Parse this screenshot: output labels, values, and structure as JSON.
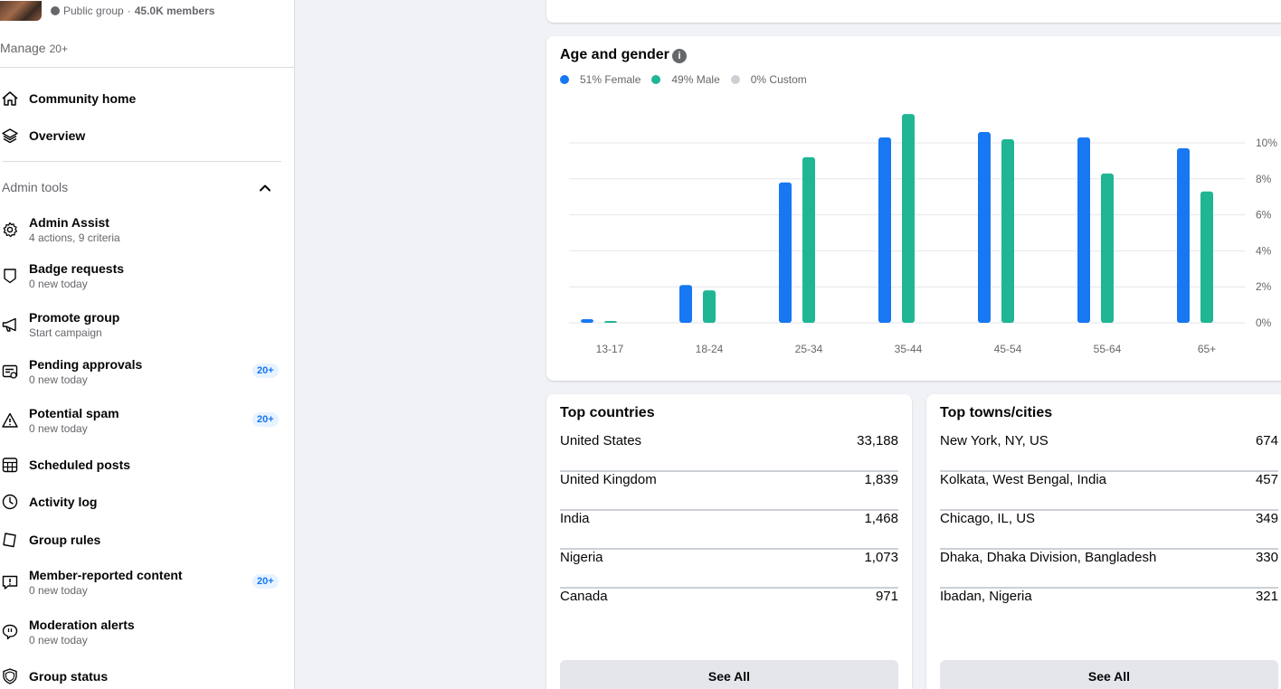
{
  "group": {
    "privacy": "Public group",
    "members": "45.0K members"
  },
  "manage": {
    "label": "Manage",
    "count": "20+"
  },
  "nav_top": [
    {
      "label": "Community home",
      "icon": "home-icon"
    },
    {
      "label": "Overview",
      "icon": "layers-icon"
    }
  ],
  "admin_tools": {
    "title": "Admin tools",
    "items": [
      {
        "label": "Admin Assist",
        "sub": "4 actions, 9 criteria",
        "icon": "gear-icon"
      },
      {
        "label": "Badge requests",
        "sub": "0 new today",
        "icon": "badge-icon"
      },
      {
        "label": "Promote group",
        "sub": "Start campaign",
        "icon": "megaphone-icon"
      },
      {
        "label": "Pending approvals",
        "sub": "0 new today",
        "icon": "approvals-icon",
        "badge": "20+"
      },
      {
        "label": "Potential spam",
        "sub": "0 new today",
        "icon": "warning-icon",
        "badge": "20+"
      },
      {
        "label": "Scheduled posts",
        "icon": "calendar-icon"
      },
      {
        "label": "Activity log",
        "icon": "clock-icon"
      },
      {
        "label": "Group rules",
        "icon": "rules-icon"
      },
      {
        "label": "Member-reported content",
        "sub": "0 new today",
        "icon": "report-icon",
        "badge": "20+"
      },
      {
        "label": "Moderation alerts",
        "sub": "0 new today",
        "icon": "alert-bubble-icon"
      },
      {
        "label": "Group status",
        "icon": "shield-icon"
      }
    ]
  },
  "age_gender": {
    "title": "Age and gender",
    "legend": [
      {
        "label": "51% Female",
        "color": "#1877f2"
      },
      {
        "label": "49% Male",
        "color": "#20b693"
      },
      {
        "label": "0% Custom",
        "color": "#ccd0d5"
      }
    ]
  },
  "chart_data": {
    "type": "bar",
    "categories": [
      "13-17",
      "18-24",
      "25-34",
      "35-44",
      "45-54",
      "55-64",
      "65+"
    ],
    "series": [
      {
        "name": "Female",
        "color": "#1877f2",
        "values": [
          0.2,
          2.1,
          7.8,
          10.3,
          10.6,
          10.3,
          9.7
        ]
      },
      {
        "name": "Male",
        "color": "#20b693",
        "values": [
          0.1,
          1.8,
          9.2,
          11.6,
          10.2,
          8.3,
          7.3
        ]
      }
    ],
    "yticks": [
      "0%",
      "2%",
      "4%",
      "6%",
      "8%",
      "10%"
    ],
    "ylim": [
      0,
      12
    ],
    "grid": true
  },
  "countries": {
    "title": "Top countries",
    "rows": [
      {
        "name": "United States",
        "value": "33,188"
      },
      {
        "name": "United Kingdom",
        "value": "1,839"
      },
      {
        "name": "India",
        "value": "1,468"
      },
      {
        "name": "Nigeria",
        "value": "1,073"
      },
      {
        "name": "Canada",
        "value": "971"
      }
    ],
    "see_all": "See All"
  },
  "cities": {
    "title": "Top towns/cities",
    "rows": [
      {
        "name": "New York, NY, US",
        "value": "674"
      },
      {
        "name": "Kolkata, West Bengal, India",
        "value": "457"
      },
      {
        "name": "Chicago, IL, US",
        "value": "349"
      },
      {
        "name": "Dhaka, Dhaka Division, Bangladesh",
        "value": "330"
      },
      {
        "name": "Ibadan, Nigeria",
        "value": "321"
      }
    ],
    "see_all": "See All"
  }
}
